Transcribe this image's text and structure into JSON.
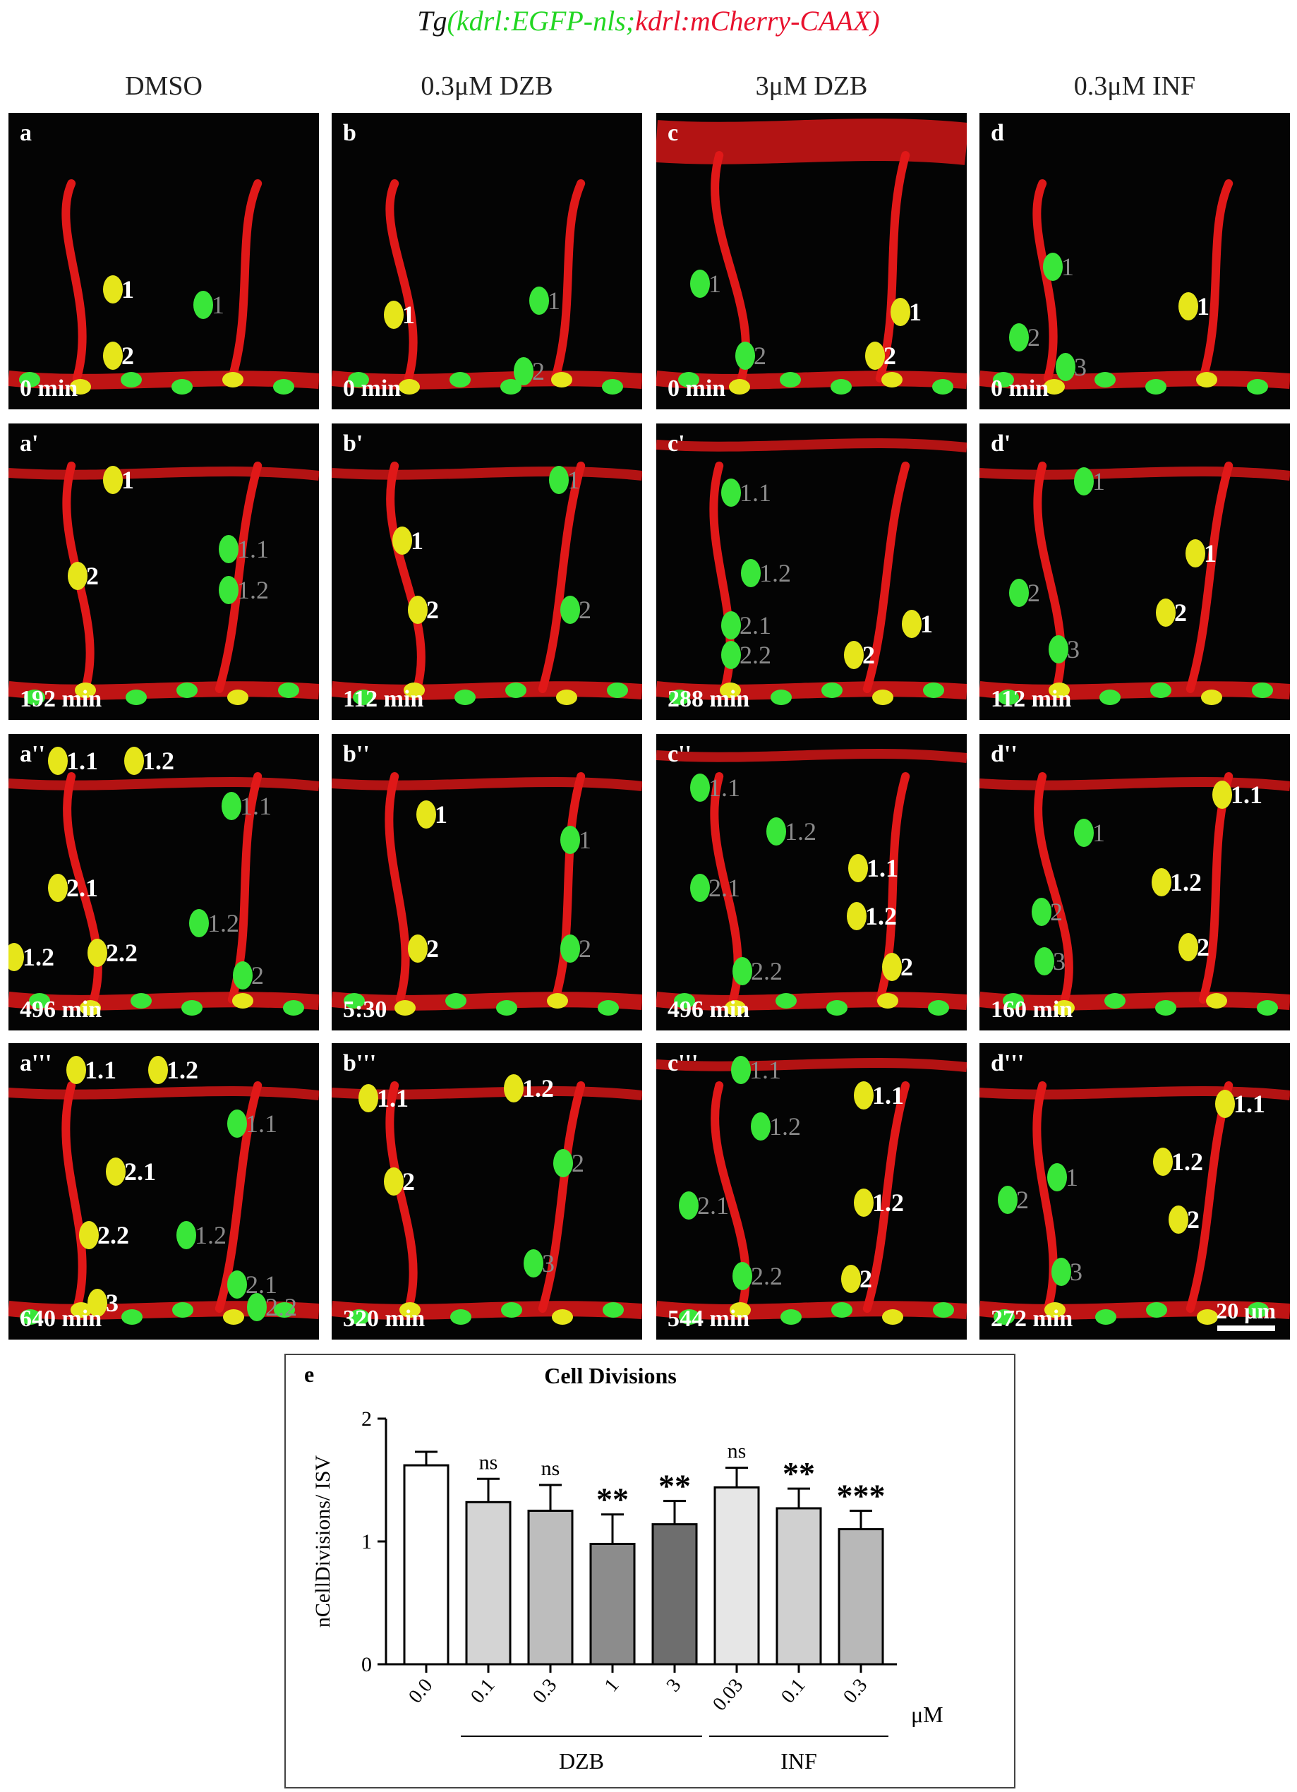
{
  "figure_title": {
    "prefix": "Tg",
    "green_part": "(kdrl:EGFP-nls;",
    "red_part": "kdrl:mCherry-CAAX)"
  },
  "columns": [
    "DMSO",
    "0.3μM DZB",
    "3μM DZB",
    "0.3μM INF"
  ],
  "panels": [
    [
      {
        "label": "a",
        "time": "0 min",
        "cells": [
          {
            "t": "1",
            "c": "w"
          },
          {
            "t": "2",
            "c": "w"
          },
          {
            "t": "1",
            "c": "g"
          }
        ]
      },
      {
        "label": "a'",
        "time": "192 min",
        "cells": [
          {
            "t": "1",
            "c": "w"
          },
          {
            "t": "2",
            "c": "w"
          },
          {
            "t": "1.1",
            "c": "g"
          },
          {
            "t": "1.2",
            "c": "g"
          }
        ]
      },
      {
        "label": "a''",
        "time": "496 min",
        "cells": [
          {
            "t": "1.1",
            "c": "w"
          },
          {
            "t": "1.2",
            "c": "w"
          },
          {
            "t": "1.1",
            "c": "g"
          },
          {
            "t": "2.1",
            "c": "w"
          },
          {
            "t": "1.2",
            "c": "g"
          },
          {
            "t": "1.2",
            "c": "w"
          },
          {
            "t": "2.2",
            "c": "w"
          },
          {
            "t": "2",
            "c": "g"
          }
        ]
      },
      {
        "label": "a'''",
        "time": "640 min",
        "cells": [
          {
            "t": "1.1",
            "c": "w"
          },
          {
            "t": "1.2",
            "c": "w"
          },
          {
            "t": "1.1",
            "c": "g"
          },
          {
            "t": "2.1",
            "c": "w"
          },
          {
            "t": "2.2",
            "c": "w"
          },
          {
            "t": "1.2",
            "c": "g"
          },
          {
            "t": "2.1",
            "c": "g"
          },
          {
            "t": "2.2",
            "c": "g"
          },
          {
            "t": "3",
            "c": "w"
          }
        ]
      }
    ],
    [
      {
        "label": "b",
        "time": "0 min",
        "cells": [
          {
            "t": "1",
            "c": "w"
          },
          {
            "t": "1",
            "c": "g"
          },
          {
            "t": "2",
            "c": "g"
          }
        ]
      },
      {
        "label": "b'",
        "time": "112 min",
        "cells": [
          {
            "t": "1",
            "c": "g"
          },
          {
            "t": "1",
            "c": "w"
          },
          {
            "t": "2",
            "c": "w"
          },
          {
            "t": "2",
            "c": "g"
          }
        ]
      },
      {
        "label": "b''",
        "time": "5:30",
        "cells": [
          {
            "t": "1",
            "c": "w"
          },
          {
            "t": "1",
            "c": "g"
          },
          {
            "t": "2",
            "c": "w"
          },
          {
            "t": "2",
            "c": "g"
          }
        ]
      },
      {
        "label": "b'''",
        "time": "320 min",
        "cells": [
          {
            "t": "1.1",
            "c": "w"
          },
          {
            "t": "1.2",
            "c": "w"
          },
          {
            "t": "2",
            "c": "w"
          },
          {
            "t": "2",
            "c": "g"
          },
          {
            "t": "3",
            "c": "g"
          }
        ]
      }
    ],
    [
      {
        "label": "c",
        "time": "0 min",
        "cells": [
          {
            "t": "1",
            "c": "g"
          },
          {
            "t": "1",
            "c": "w"
          },
          {
            "t": "2",
            "c": "g"
          },
          {
            "t": "2",
            "c": "w"
          }
        ]
      },
      {
        "label": "c'",
        "time": "288 min",
        "cells": [
          {
            "t": "1.1",
            "c": "g"
          },
          {
            "t": "1.2",
            "c": "g"
          },
          {
            "t": "2.1",
            "c": "g"
          },
          {
            "t": "2.2",
            "c": "g"
          },
          {
            "t": "1",
            "c": "w"
          },
          {
            "t": "2",
            "c": "w"
          }
        ]
      },
      {
        "label": "c''",
        "time": "496 min",
        "cells": [
          {
            "t": "1.1",
            "c": "g"
          },
          {
            "t": "1.2",
            "c": "g"
          },
          {
            "t": "2.1",
            "c": "g"
          },
          {
            "t": "2.2",
            "c": "g"
          },
          {
            "t": "1.1",
            "c": "w"
          },
          {
            "t": "1.2",
            "c": "w"
          },
          {
            "t": "2",
            "c": "w"
          }
        ]
      },
      {
        "label": "c'''",
        "time": "544 min",
        "cells": [
          {
            "t": "1.1",
            "c": "g"
          },
          {
            "t": "1.2",
            "c": "g"
          },
          {
            "t": "1.1",
            "c": "w"
          },
          {
            "t": "2.1",
            "c": "g"
          },
          {
            "t": "1.2",
            "c": "w"
          },
          {
            "t": "2.2",
            "c": "g"
          },
          {
            "t": "2",
            "c": "w"
          }
        ]
      }
    ],
    [
      {
        "label": "d",
        "time": "0 min",
        "cells": [
          {
            "t": "1",
            "c": "g"
          },
          {
            "t": "1",
            "c": "w"
          },
          {
            "t": "2",
            "c": "g"
          },
          {
            "t": "3",
            "c": "g"
          }
        ]
      },
      {
        "label": "d'",
        "time": "112 min",
        "cells": [
          {
            "t": "1",
            "c": "g"
          },
          {
            "t": "1",
            "c": "w"
          },
          {
            "t": "2",
            "c": "g"
          },
          {
            "t": "2",
            "c": "w"
          },
          {
            "t": "3",
            "c": "g"
          }
        ]
      },
      {
        "label": "d''",
        "time": "160 min",
        "cells": [
          {
            "t": "1.1",
            "c": "w"
          },
          {
            "t": "1",
            "c": "g"
          },
          {
            "t": "1.2",
            "c": "w"
          },
          {
            "t": "2",
            "c": "g"
          },
          {
            "t": "2",
            "c": "w"
          },
          {
            "t": "3",
            "c": "g"
          }
        ]
      },
      {
        "label": "d'''",
        "time": "272 min",
        "cells": [
          {
            "t": "1.1",
            "c": "w"
          },
          {
            "t": "1.2",
            "c": "w"
          },
          {
            "t": "1",
            "c": "g"
          },
          {
            "t": "2",
            "c": "g"
          },
          {
            "t": "2",
            "c": "w"
          },
          {
            "t": "3",
            "c": "g"
          }
        ]
      }
    ]
  ],
  "scale_bar": "20 μm",
  "colors": {
    "vessel": "#e01818",
    "nucleus": "#39e639",
    "overlap": "#e6e61a",
    "background": "#040404"
  },
  "chart_data": {
    "type": "bar",
    "panel_label": "e",
    "title": "Cell Divisions",
    "ylabel": "nCellDivisions/ ISV",
    "xunit": "μM",
    "ylim": [
      0,
      2
    ],
    "yticks": [
      "0",
      "1",
      "2"
    ],
    "categories": [
      "0.0",
      "0.1",
      "0.3",
      "1",
      "3",
      "0.03",
      "0.1",
      "0.3"
    ],
    "values": [
      1.62,
      1.32,
      1.25,
      0.98,
      1.14,
      1.44,
      1.27,
      1.1
    ],
    "errors": [
      0.11,
      0.19,
      0.21,
      0.24,
      0.19,
      0.16,
      0.16,
      0.15
    ],
    "significance": [
      "",
      "ns",
      "ns",
      "**",
      "**",
      "ns",
      "**",
      "***"
    ],
    "bar_colors": [
      "#ffffff",
      "#d4d4d4",
      "#bdbdbd",
      "#8c8c8c",
      "#6e6e6e",
      "#e6e6e6",
      "#d0d0d0",
      "#b8b8b8"
    ],
    "groups": [
      {
        "label": "DZB",
        "from": 1,
        "to": 4
      },
      {
        "label": "INF",
        "from": 5,
        "to": 7
      }
    ]
  }
}
